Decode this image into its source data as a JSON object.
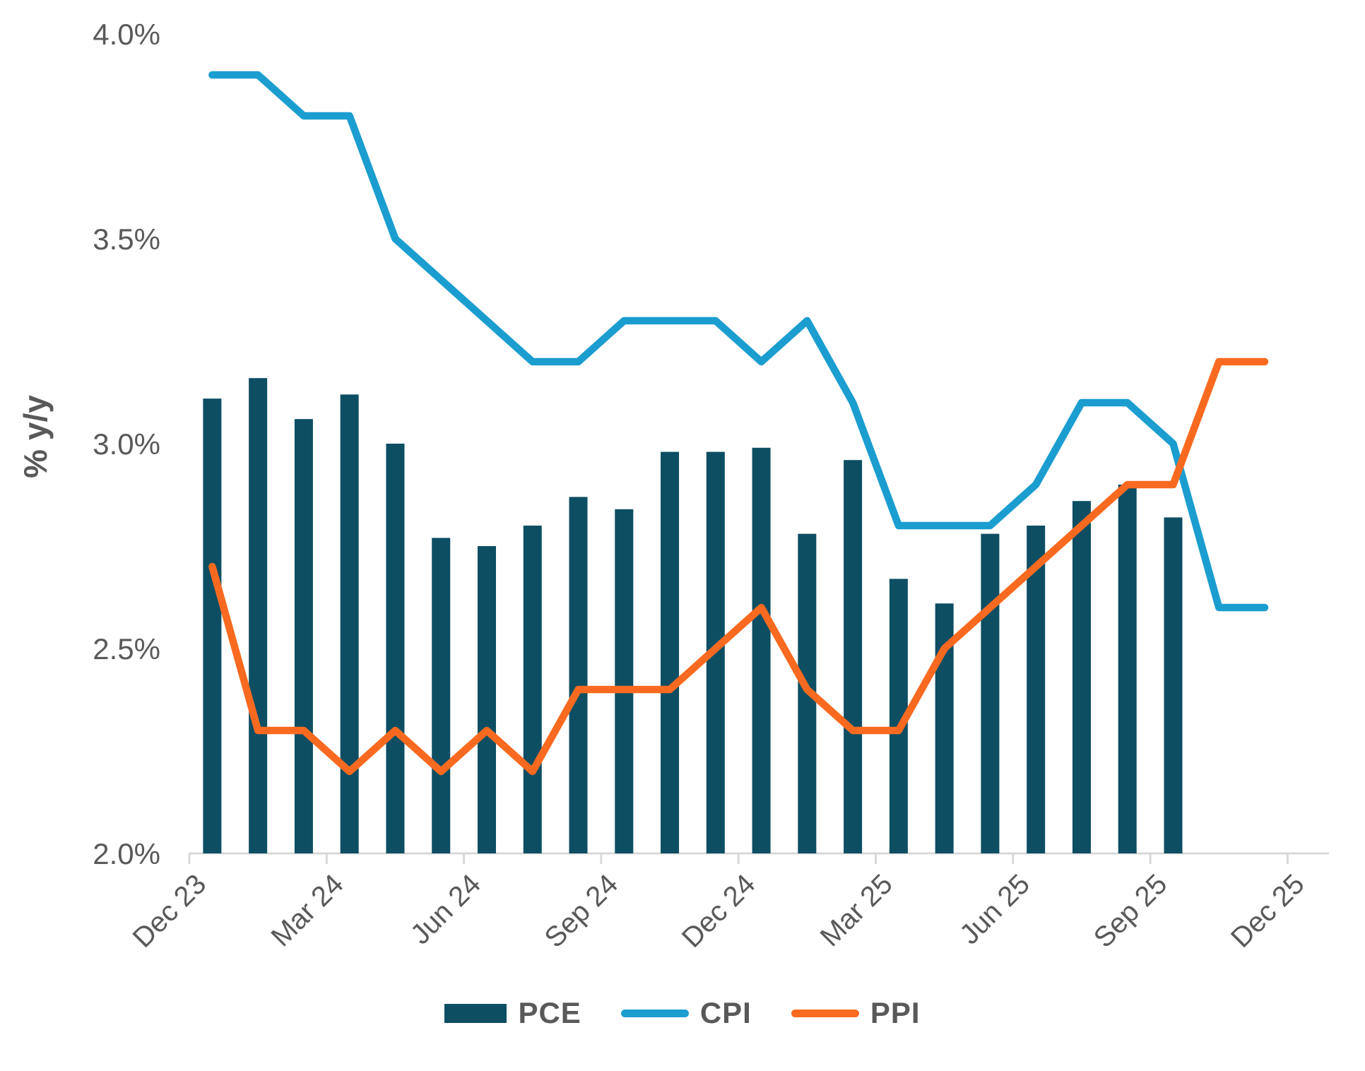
{
  "axis_title": "% y/y",
  "legend": {
    "items": [
      {
        "label": "PCE",
        "swatch": "bar"
      },
      {
        "label": "CPI",
        "swatch": "line"
      },
      {
        "label": "PPI",
        "swatch": "line"
      }
    ]
  },
  "chart_data": {
    "type": "combo-bar-line",
    "title": "",
    "xlabel": "",
    "ylabel": "% y/y",
    "ylim": [
      2.0,
      4.0
    ],
    "grid": false,
    "legend_position": "bottom",
    "background": "#FFFFFF",
    "axis_color": "#D8D8D8",
    "text_color": "#595959",
    "categories": [
      "Dec 23",
      "Jan 24",
      "Feb 24",
      "Mar 24",
      "Apr 24",
      "May 24",
      "Jun 24",
      "Jul 24",
      "Aug 24",
      "Sep 24",
      "Oct 24",
      "Nov 24",
      "Dec 24",
      "Jan 25",
      "Feb 25",
      "Mar 25",
      "Apr 25",
      "May 25",
      "Jun 25",
      "Jul 25",
      "Aug 25",
      "Sep 25",
      "Oct 25",
      "Nov 25"
    ],
    "x_tick_labels": [
      "Dec 23",
      "Mar 24",
      "Jun 24",
      "Sep 24",
      "Dec 24",
      "Mar 25",
      "Jun 25",
      "Sep 25",
      "Dec 25"
    ],
    "y_tick_labels": [
      "2.0%",
      "2.5%",
      "3.0%",
      "3.5%",
      "4.0%"
    ],
    "y_tick_values": [
      2.0,
      2.5,
      3.0,
      3.5,
      4.0
    ],
    "series": [
      {
        "name": "PCE",
        "type": "bar",
        "color": "#0D4E63",
        "values": [
          3.11,
          3.16,
          3.06,
          3.12,
          3.0,
          2.77,
          2.75,
          2.8,
          2.87,
          2.84,
          2.98,
          2.98,
          2.99,
          2.78,
          2.96,
          2.67,
          2.61,
          2.78,
          2.8,
          2.86,
          2.9,
          2.82
        ]
      },
      {
        "name": "CPI",
        "type": "line",
        "color": "#1B9DD0",
        "values": [
          3.9,
          3.9,
          3.8,
          3.8,
          3.5,
          3.4,
          3.3,
          3.2,
          3.2,
          3.3,
          3.3,
          3.3,
          3.2,
          3.3,
          3.1,
          2.8,
          2.8,
          2.8,
          2.9,
          3.1,
          3.1,
          3.0,
          2.6,
          2.6
        ]
      },
      {
        "name": "PPI",
        "type": "line",
        "color": "#F96A20",
        "values": [
          2.7,
          2.3,
          2.3,
          2.2,
          2.3,
          2.2,
          2.3,
          2.2,
          2.4,
          2.4,
          2.4,
          2.5,
          2.6,
          2.4,
          2.3,
          2.3,
          2.5,
          2.6,
          2.7,
          2.8,
          2.9,
          2.9,
          3.2,
          3.2
        ]
      }
    ]
  }
}
